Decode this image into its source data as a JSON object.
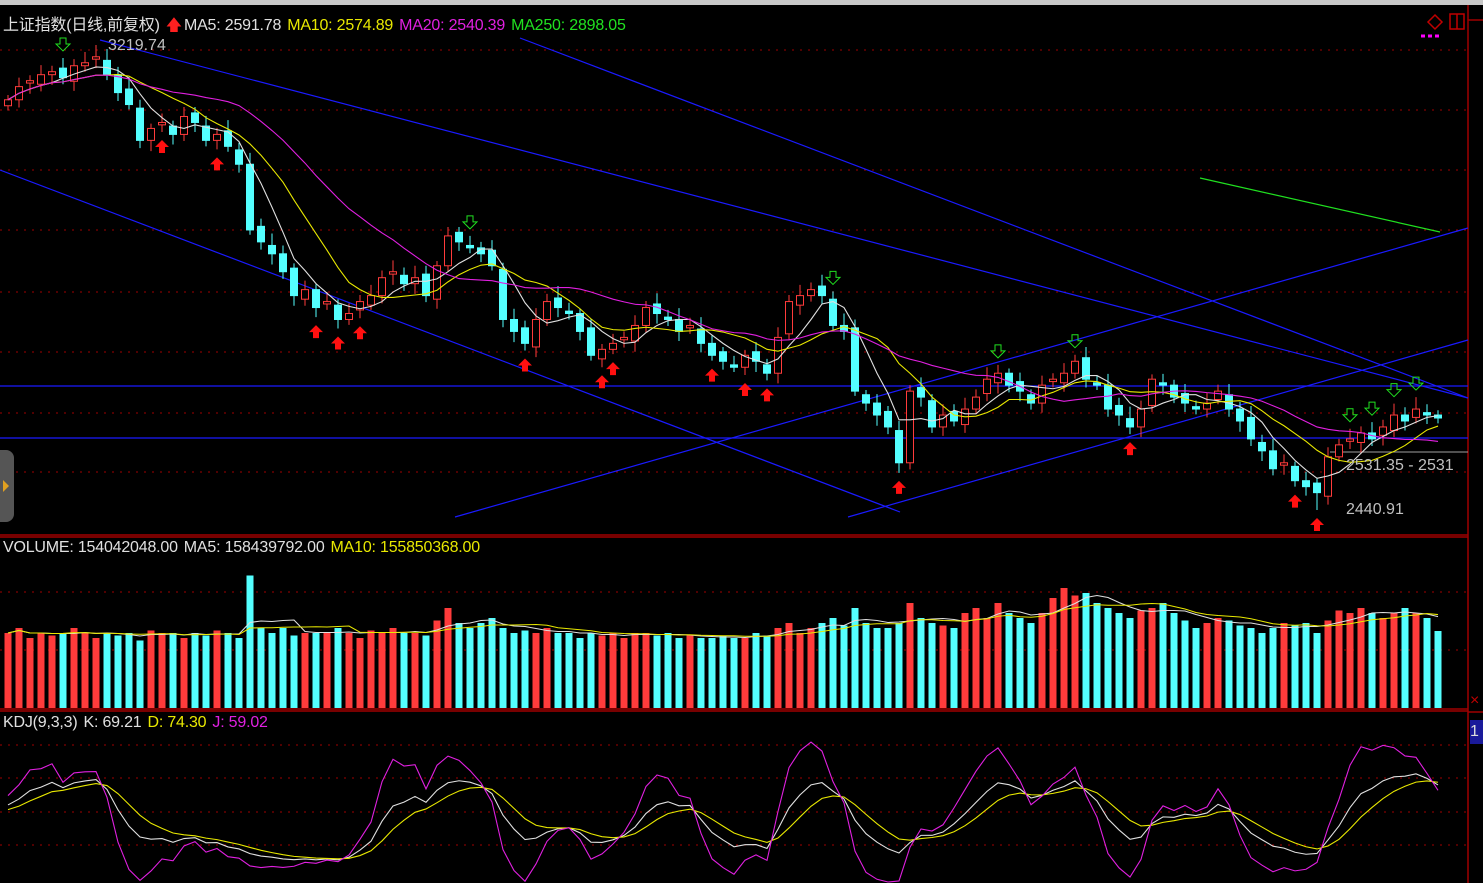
{
  "header": {
    "title": "上证指数(日线,前复权)",
    "ma5": "MA5: 2591.78",
    "ma10": "MA10: 2574.89",
    "ma20": "MA20: 2540.39",
    "ma250": "MA250: 2898.05"
  },
  "annotations": {
    "high_label": "3219.74",
    "low_label": "2440.91",
    "range_label": "2531.35 - 2531"
  },
  "volume_panel": {
    "volume": "VOLUME: 154042048.00",
    "ma5": "MA5: 158439792.00",
    "ma10": "MA10: 155850368.00"
  },
  "kdj_panel": {
    "name": "KDJ(9,3,3)",
    "k": "K: 69.21",
    "d": "D: 74.30",
    "j": "J: 59.02",
    "tab": "1"
  },
  "colors": {
    "up": "#ff3b3b",
    "down": "#54ffff",
    "ma5": "#e0e0e0",
    "ma10": "#e8e800",
    "ma20": "#e020e0",
    "ma250": "#20e020",
    "trend": "#1a1aff",
    "grid": "#a00000"
  },
  "chart_data": {
    "type": "candlestick",
    "price_range": [
      2440.91,
      3219.74
    ],
    "closes": [
      3128,
      3150,
      3160,
      3170,
      3175,
      3165,
      3185,
      3190,
      3200,
      3170,
      3140,
      3120,
      3060,
      3080,
      3090,
      3070,
      3100,
      3090,
      3060,
      3070,
      3050,
      3020,
      2910,
      2890,
      2870,
      2840,
      2800,
      2810,
      2780,
      2790,
      2760,
      2770,
      2790,
      2800,
      2830,
      2840,
      2820,
      2830,
      2800,
      2850,
      2900,
      2890,
      2880,
      2870,
      2850,
      2760,
      2740,
      2720,
      2760,
      2790,
      2780,
      2770,
      2740,
      2700,
      2710,
      2720,
      2730,
      2750,
      2780,
      2770,
      2760,
      2740,
      2750,
      2720,
      2700,
      2690,
      2680,
      2700,
      2690,
      2670,
      2730,
      2790,
      2800,
      2810,
      2800,
      2750,
      2740,
      2640,
      2620,
      2600,
      2580,
      2520,
      2640,
      2630,
      2580,
      2600,
      2590,
      2610,
      2630,
      2660,
      2670,
      2650,
      2640,
      2620,
      2650,
      2660,
      2670,
      2690,
      2660,
      2650,
      2610,
      2600,
      2580,
      2610,
      2660,
      2650,
      2630,
      2620,
      2610,
      2620,
      2640,
      2610,
      2590,
      2560,
      2540,
      2510,
      2520,
      2490,
      2480,
      2470,
      2530,
      2550,
      2560,
      2570,
      2560,
      2580,
      2600,
      2590,
      2610,
      2600,
      2595
    ],
    "volumes_millions": [
      150,
      160,
      140,
      150,
      145,
      150,
      160,
      150,
      140,
      150,
      145,
      150,
      135,
      155,
      150,
      150,
      140,
      150,
      145,
      155,
      150,
      140,
      265,
      160,
      150,
      160,
      145,
      150,
      150,
      150,
      160,
      150,
      140,
      155,
      150,
      160,
      150,
      150,
      145,
      175,
      200,
      170,
      160,
      170,
      180,
      160,
      150,
      155,
      150,
      160,
      150,
      150,
      140,
      150,
      145,
      150,
      140,
      150,
      150,
      145,
      150,
      140,
      145,
      140,
      140,
      145,
      140,
      140,
      150,
      145,
      160,
      170,
      150,
      160,
      170,
      180,
      165,
      200,
      170,
      160,
      160,
      170,
      210,
      180,
      170,
      165,
      160,
      190,
      200,
      180,
      210,
      190,
      180,
      170,
      190,
      220,
      240,
      225,
      230,
      210,
      200,
      190,
      180,
      195,
      200,
      210,
      190,
      175,
      160,
      170,
      180,
      175,
      165,
      160,
      150,
      160,
      170,
      165,
      170,
      150,
      175,
      195,
      190,
      200,
      190,
      180,
      190,
      200,
      190,
      180,
      154
    ],
    "buy_signals": [
      14,
      19,
      28,
      30,
      32,
      47,
      54,
      55,
      64,
      67,
      69,
      81,
      102,
      117,
      119
    ],
    "sell_signals": [
      5,
      42,
      75,
      90,
      97,
      122,
      124,
      126,
      128
    ]
  }
}
